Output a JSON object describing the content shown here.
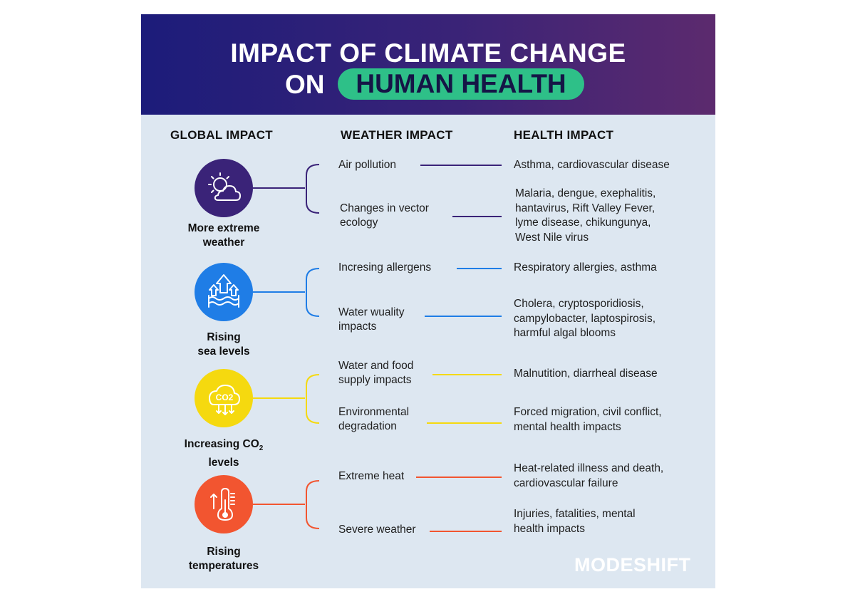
{
  "header": {
    "title_line1": "IMPACT OF CLIMATE CHANGE",
    "title_on": "ON",
    "title_highlight": "HUMAN HEALTH"
  },
  "columns": {
    "global": "GLOBAL IMPACT",
    "weather": "WEATHER IMPACT",
    "health": "HEALTH IMPACT"
  },
  "colors": {
    "header_start": "#1c1c7a",
    "header_end": "#5c2a6e",
    "pill": "#2ec088",
    "background": "#dde7f1",
    "extreme_weather": "#3a2378",
    "sea_levels": "#1f7de6",
    "co2": "#f5d90f",
    "temperatures": "#f25530"
  },
  "groups": [
    {
      "label_line1": "More extreme",
      "label_line2": "weather",
      "icon": "sun-cloud-icon",
      "rows": [
        {
          "weather": [
            "Air pollution"
          ],
          "health": [
            "Asthma, cardiovascular disease"
          ]
        },
        {
          "weather": [
            "Changes in vector",
            "ecology"
          ],
          "health": [
            "Malaria, dengue, exephalitis,",
            "hantavirus, Rift Valley Fever,",
            "lyme disease, chikungunya,",
            "West Nile virus"
          ]
        }
      ]
    },
    {
      "label_line1": "Rising",
      "label_line2": "sea levels",
      "icon": "rising-water-icon",
      "rows": [
        {
          "weather": [
            "Incresing allergens"
          ],
          "health": [
            "Respiratory allergies, asthma"
          ]
        },
        {
          "weather": [
            "Water wuality",
            "impacts"
          ],
          "health": [
            "Cholera, cryptosporidiosis,",
            "campylobacter, laptospirosis,",
            "harmful algal blooms"
          ]
        }
      ]
    },
    {
      "label_line1_prefix": "Increasing CO",
      "label_line1_sub": "2",
      "label_line2": "levels",
      "icon": "co2-cloud-icon",
      "co2_text": "CO2",
      "rows": [
        {
          "weather": [
            "Water and food",
            "supply impacts"
          ],
          "health": [
            "Malnutition, diarrheal disease"
          ]
        },
        {
          "weather": [
            "Environmental",
            "degradation"
          ],
          "health": [
            "Forced migration, civil conflict,",
            "mental health impacts"
          ]
        }
      ]
    },
    {
      "label_line1": "Rising",
      "label_line2": "temperatures",
      "icon": "thermometer-icon",
      "rows": [
        {
          "weather": [
            "Extreme heat"
          ],
          "health": [
            "Heat-related illness and death,",
            "cardiovascular failure"
          ]
        },
        {
          "weather": [
            "Severe weather"
          ],
          "health": [
            "Injuries, fatalities, mental",
            "health impacts"
          ]
        }
      ]
    }
  ],
  "brand": "MODESHIFT"
}
